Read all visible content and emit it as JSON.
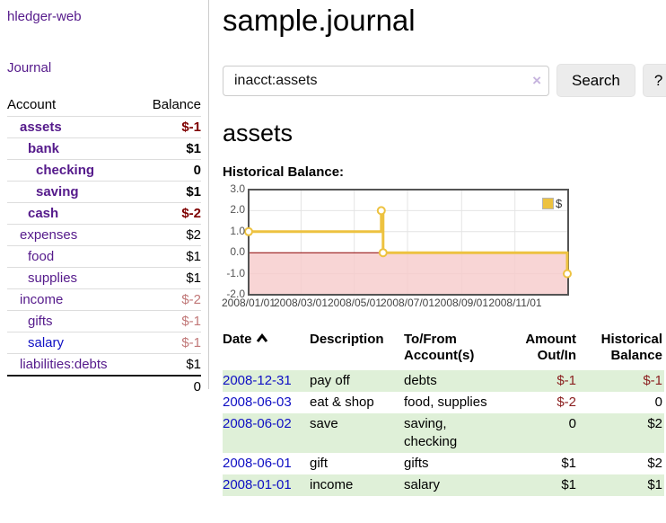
{
  "app": {
    "title": "hledger-web"
  },
  "sidebar": {
    "journal_link": "Journal",
    "accounts_header": {
      "account": "Account",
      "balance": "Balance"
    },
    "accounts": [
      {
        "name": "assets",
        "balance": "$-1",
        "depth": 1,
        "bold": true,
        "neg": true,
        "blue": false
      },
      {
        "name": "bank",
        "balance": "$1",
        "depth": 2,
        "bold": true,
        "neg": false,
        "blue": false
      },
      {
        "name": "checking",
        "balance": "0",
        "depth": 3,
        "bold": true,
        "neg": false,
        "blue": false
      },
      {
        "name": "saving",
        "balance": "$1",
        "depth": 3,
        "bold": true,
        "neg": false,
        "blue": false
      },
      {
        "name": "cash",
        "balance": "$-2",
        "depth": 2,
        "bold": true,
        "neg": true,
        "blue": false
      },
      {
        "name": "expenses",
        "balance": "$2",
        "depth": 1,
        "bold": false,
        "neg": false,
        "blue": false
      },
      {
        "name": "food",
        "balance": "$1",
        "depth": 2,
        "bold": false,
        "neg": false,
        "blue": false
      },
      {
        "name": "supplies",
        "balance": "$1",
        "depth": 2,
        "bold": false,
        "neg": false,
        "blue": false
      },
      {
        "name": "income",
        "balance": "$-2",
        "depth": 1,
        "bold": false,
        "neg": true,
        "blue": false
      },
      {
        "name": "gifts",
        "balance": "$-1",
        "depth": 2,
        "bold": false,
        "neg": true,
        "blue": false
      },
      {
        "name": "salary",
        "balance": "$-1",
        "depth": 2,
        "bold": false,
        "neg": true,
        "blue": true
      },
      {
        "name": "liabilities:debts",
        "balance": "$1",
        "depth": 1,
        "bold": false,
        "neg": false,
        "blue": false
      }
    ],
    "total": "0"
  },
  "header": {
    "title": "sample.journal"
  },
  "search": {
    "value": "inacct:assets",
    "clear_icon": "×",
    "button_label": "Search",
    "help_label": "?"
  },
  "account_page": {
    "title": "assets",
    "chart_label": "Historical Balance:"
  },
  "chart_data": {
    "type": "line",
    "title": "Historical Balance",
    "series": [
      {
        "name": "$",
        "color": "#edc240",
        "step": true,
        "points": [
          {
            "date": "2008-01-01",
            "value": 1
          },
          {
            "date": "2008-06-01",
            "value": 2
          },
          {
            "date": "2008-06-03",
            "value": 0
          },
          {
            "date": "2008-12-31",
            "value": -1
          }
        ]
      }
    ],
    "x_range": [
      "2008-01-01",
      "2009-01-01"
    ],
    "x_ticks": [
      "2008/01/01",
      "2008/03/01",
      "2008/05/01",
      "2008/07/01",
      "2008/09/01",
      "2008/11/01"
    ],
    "y_ticks": [
      3.0,
      2.0,
      1.0,
      0.0,
      -1.0,
      -2.0
    ],
    "ylim": [
      -2,
      3
    ],
    "grid": true,
    "legend": {
      "label": "$",
      "position": "top-right"
    },
    "negative_region_fill": "#f6caca",
    "zero_line_color": "#8b0000"
  },
  "register": {
    "columns": [
      "Date",
      "Description",
      "To/From\nAccount(s)",
      "Amount\nOut/In",
      "Historical\nBalance"
    ],
    "rows": [
      {
        "date": "2008-12-31",
        "description": "pay off",
        "accounts": "debts",
        "amount": "$-1",
        "balance": "$-1",
        "amount_neg": true,
        "balance_neg": true
      },
      {
        "date": "2008-06-03",
        "description": "eat & shop",
        "accounts": "food, supplies",
        "amount": "$-2",
        "balance": "0",
        "amount_neg": true,
        "balance_neg": false
      },
      {
        "date": "2008-06-02",
        "description": "save",
        "accounts": "saving, checking",
        "amount": "0",
        "balance": "$2",
        "amount_neg": false,
        "balance_neg": false
      },
      {
        "date": "2008-06-01",
        "description": "gift",
        "accounts": "gifts",
        "amount": "$1",
        "balance": "$2",
        "amount_neg": false,
        "balance_neg": false
      },
      {
        "date": "2008-01-01",
        "description": "income",
        "accounts": "salary",
        "amount": "$1",
        "balance": "$1",
        "amount_neg": false,
        "balance_neg": false
      }
    ]
  }
}
